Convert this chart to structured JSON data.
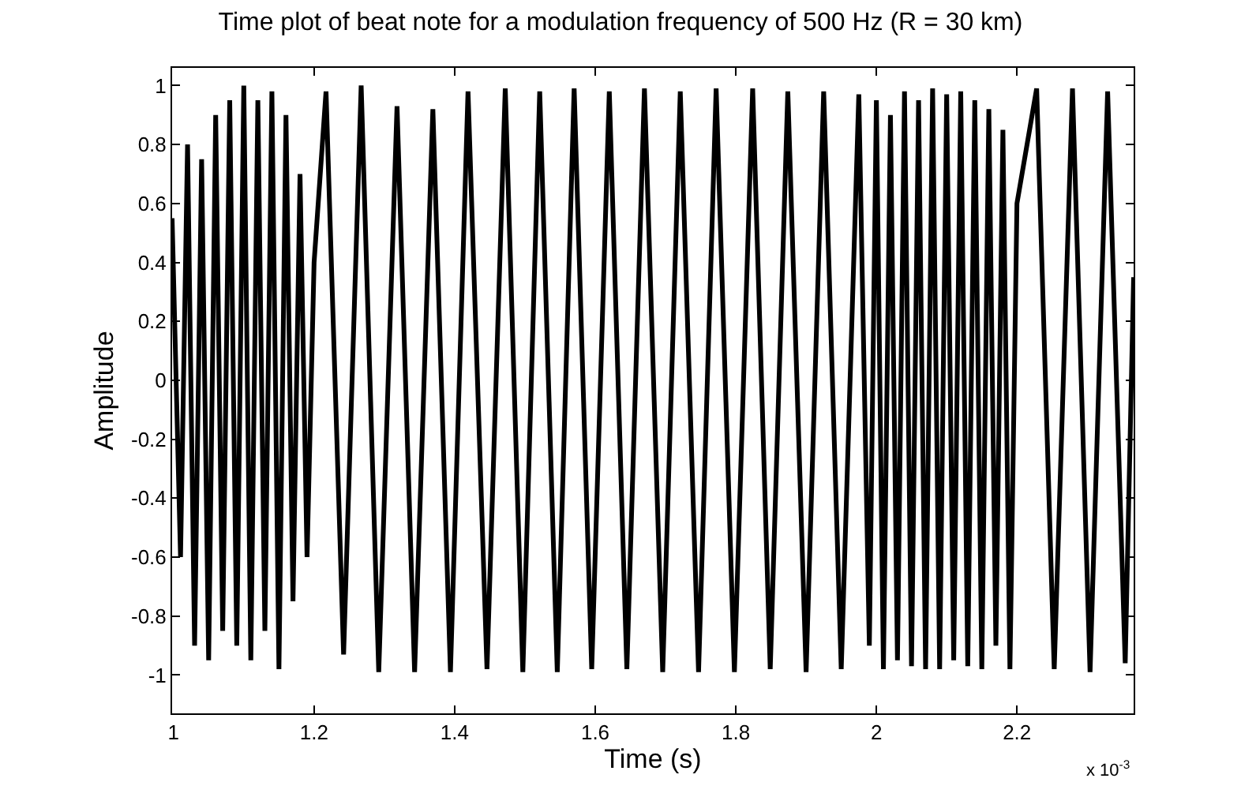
{
  "chart_data": {
    "type": "line",
    "title": "Time plot of beat note for a modulation frequency of 500 Hz (R = 30 km)",
    "xlabel": "Time (s)",
    "ylabel": "Amplitude",
    "annotations": [
      "x 10$^{-3}$"
    ],
    "series": [
      {
        "color": "#000000",
        "x": [
          0.998,
          1.01,
          1.02,
          1.03,
          1.04,
          1.05,
          1.06,
          1.07,
          1.08,
          1.09,
          1.1,
          1.11,
          1.12,
          1.13,
          1.14,
          1.15,
          1.16,
          1.17,
          1.18,
          1.19,
          1.2,
          1.217,
          1.242,
          1.267,
          1.292,
          1.318,
          1.343,
          1.369,
          1.394,
          1.419,
          1.446,
          1.472,
          1.497,
          1.521,
          1.546,
          1.57,
          1.595,
          1.62,
          1.645,
          1.67,
          1.696,
          1.721,
          1.747,
          1.772,
          1.798,
          1.824,
          1.849,
          1.874,
          1.9,
          1.925,
          1.95,
          1.975,
          1.99,
          2.0,
          2.01,
          2.02,
          2.03,
          2.04,
          2.05,
          2.06,
          2.07,
          2.08,
          2.09,
          2.1,
          2.11,
          2.12,
          2.13,
          2.14,
          2.15,
          2.16,
          2.17,
          2.18,
          2.19,
          2.2,
          2.228,
          2.253,
          2.279,
          2.304,
          2.329,
          2.354,
          2.366
        ],
        "values": [
          0.55,
          -0.6,
          0.8,
          -0.9,
          0.75,
          -0.95,
          0.9,
          -0.85,
          0.95,
          -0.9,
          1.0,
          -0.95,
          0.95,
          -0.85,
          0.98,
          -0.98,
          0.9,
          -0.75,
          0.7,
          -0.6,
          0.4,
          0.98,
          -0.93,
          1.0,
          -0.99,
          0.93,
          -0.99,
          0.92,
          -0.99,
          0.98,
          -0.98,
          0.99,
          -0.99,
          0.98,
          -0.99,
          0.99,
          -0.98,
          0.98,
          -0.98,
          0.99,
          -0.99,
          0.98,
          -0.99,
          0.99,
          -0.99,
          0.99,
          -0.98,
          0.98,
          -0.99,
          0.98,
          -0.98,
          0.97,
          -0.9,
          0.95,
          -0.98,
          0.9,
          -0.95,
          0.98,
          -0.97,
          0.95,
          -0.98,
          0.99,
          -0.98,
          0.97,
          -0.95,
          0.98,
          -0.97,
          0.95,
          -0.98,
          0.92,
          -0.9,
          0.85,
          -0.98,
          0.6,
          0.99,
          -0.98,
          0.99,
          -0.99,
          0.98,
          -0.96,
          0.35
        ]
      }
    ],
    "xlim": [
      0.998,
      2.366
    ],
    "xticks": [
      1,
      1.2,
      1.4,
      1.6,
      1.8,
      2,
      2.2
    ],
    "ylim": [
      -1.13,
      1.06
    ],
    "yticks": [
      -1,
      -0.8,
      -0.6,
      -0.4,
      -0.2,
      0,
      0.2,
      0.4,
      0.6,
      0.8,
      1
    ],
    "marker": "none",
    "line_style": "solid"
  }
}
